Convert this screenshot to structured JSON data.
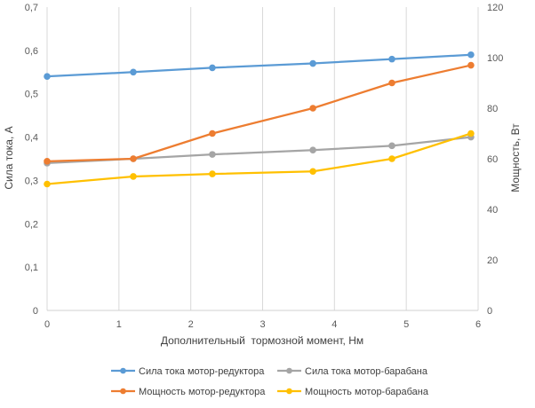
{
  "chart_data": {
    "type": "line",
    "x_label": "Дополнительный  тормозной момент, Нм",
    "y_left_label": "Сила тока, А",
    "y_right_label": "Мощность, Вт",
    "x_range": [
      0,
      6
    ],
    "x_ticks": [
      "0",
      "1",
      "2",
      "3",
      "4",
      "5",
      "6"
    ],
    "y_left_range": [
      0,
      0.7
    ],
    "y_left_ticks": [
      "0",
      "0,1",
      "0,2",
      "0,3",
      "0,4",
      "0,5",
      "0,6",
      "0,7"
    ],
    "y_right_range": [
      0,
      120
    ],
    "y_right_ticks": [
      "0",
      "20",
      "40",
      "60",
      "80",
      "100",
      "120"
    ],
    "grid": "vertical",
    "x": [
      0,
      1.2,
      2.3,
      3.7,
      4.8,
      5.9
    ],
    "series": [
      {
        "name": "Сила тока мотор-редуктора",
        "axis": "left",
        "color": "#5B9BD5",
        "values": [
          0.54,
          0.55,
          0.56,
          0.57,
          0.58,
          0.59
        ]
      },
      {
        "name": "Сила тока мотор-барабана",
        "axis": "left",
        "color": "#A5A5A5",
        "values": [
          0.34,
          0.35,
          0.36,
          0.37,
          0.38,
          0.4
        ]
      },
      {
        "name": "Мощность мотор-редуктора",
        "axis": "right",
        "color": "#ED7D31",
        "values": [
          59,
          60,
          70,
          80,
          90,
          97
        ]
      },
      {
        "name": "Мощность мотор-барабана",
        "axis": "right",
        "color": "#FFC000",
        "values": [
          50,
          53,
          54,
          55,
          60,
          70
        ]
      }
    ],
    "legend_position": "bottom"
  }
}
